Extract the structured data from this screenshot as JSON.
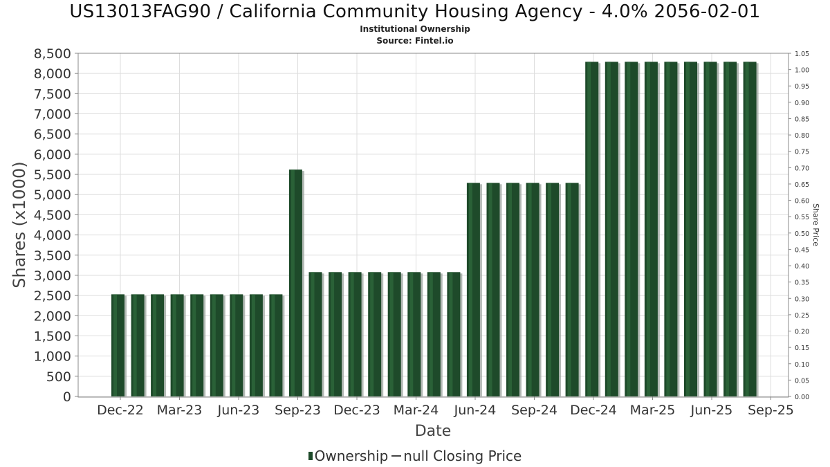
{
  "header": {
    "title": "US13013FAG90 / California Community Housing Agency - 4.0% 2056-02-01",
    "subtitle1": "Institutional Ownership",
    "subtitle2": "Source: Fintel.io"
  },
  "legend": {
    "ownership": "Ownership",
    "closing": "null Closing Price"
  },
  "colors": {
    "bar": "#1e4a2a",
    "bar_highlight": "#2f6b3d",
    "bar_shadow": "#9aa39c",
    "grid": "#dddddd",
    "plot_border": "#888888"
  },
  "chart_data": {
    "type": "bar",
    "xlabel": "Date",
    "ylabel": "Shares (x1000)",
    "y2label": "Share Price",
    "ylim": [
      0,
      8500
    ],
    "yticks": [
      0,
      500,
      1000,
      1500,
      2000,
      2500,
      3000,
      3500,
      4000,
      4500,
      5000,
      5500,
      6000,
      6500,
      7000,
      7500,
      8000,
      8500
    ],
    "ytick_labels": [
      "0",
      "500",
      "1,000",
      "1,500",
      "2,000",
      "2,500",
      "3,000",
      "3,500",
      "4,000",
      "4,500",
      "5,000",
      "5,500",
      "6,000",
      "6,500",
      "7,000",
      "7,500",
      "8,000",
      "8,500"
    ],
    "y2lim": [
      0,
      1.05
    ],
    "y2ticks": [
      "0.00",
      "0.05",
      "0.10",
      "0.15",
      "0.20",
      "0.25",
      "0.30",
      "0.35",
      "0.40",
      "0.45",
      "0.50",
      "0.55",
      "0.60",
      "0.65",
      "0.70",
      "0.75",
      "0.80",
      "0.85",
      "0.90",
      "0.95",
      "1.00",
      "1.05"
    ],
    "xtick_labels": [
      "Dec-22",
      "Mar-23",
      "Jun-23",
      "Sep-23",
      "Dec-23",
      "Mar-24",
      "Jun-24",
      "Sep-24",
      "Dec-24",
      "Mar-25",
      "Jun-25",
      "Sep-25"
    ],
    "grid": true,
    "series": [
      {
        "name": "Ownership",
        "values": [
          2530,
          2530,
          2530,
          2530,
          2530,
          2530,
          2530,
          2530,
          2530,
          5620,
          3080,
          3080,
          3080,
          3080,
          3080,
          3080,
          3080,
          3080,
          5290,
          5290,
          5290,
          5290,
          5290,
          5290,
          8290,
          8290,
          8290,
          8290,
          8290,
          8290,
          8290,
          8290,
          8290
        ]
      }
    ]
  }
}
